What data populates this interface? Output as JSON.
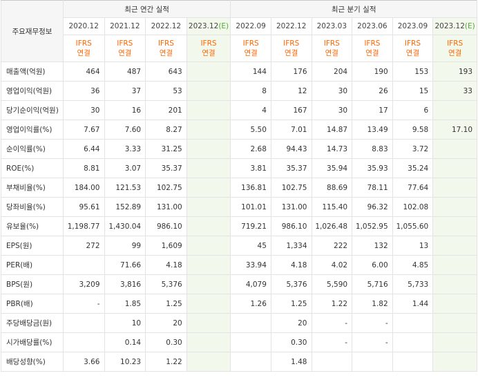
{
  "corner_label": "주요재무정보",
  "groups": {
    "annual": "최근 연간 실적",
    "quarterly": "최근 분기 실적"
  },
  "periods": [
    {
      "label": "2020.12",
      "est": false
    },
    {
      "label": "2021.12",
      "est": false
    },
    {
      "label": "2022.12",
      "est": false
    },
    {
      "label": "2023.12",
      "est": true,
      "est_mark": "(E)"
    },
    {
      "label": "2022.09",
      "est": false
    },
    {
      "label": "2022.12",
      "est": false
    },
    {
      "label": "2023.03",
      "est": false
    },
    {
      "label": "2023.06",
      "est": false
    },
    {
      "label": "2023.09",
      "est": false
    },
    {
      "label": "2023.12",
      "est": true,
      "est_mark": "(E)"
    }
  ],
  "standard": {
    "line1": "IFRS",
    "line2": "연결"
  },
  "rows": [
    {
      "label": "매출액(억원)",
      "values": [
        "464",
        "487",
        "643",
        "",
        "144",
        "176",
        "204",
        "190",
        "153",
        "193"
      ]
    },
    {
      "label": "영업이익(억원)",
      "values": [
        "36",
        "37",
        "53",
        "",
        "8",
        "12",
        "30",
        "26",
        "15",
        "33"
      ]
    },
    {
      "label": "당기순이익(억원)",
      "values": [
        "30",
        "16",
        "201",
        "",
        "4",
        "167",
        "30",
        "17",
        "6",
        ""
      ]
    },
    {
      "label": "영업이익률(%)",
      "values": [
        "7.67",
        "7.60",
        "8.27",
        "",
        "5.50",
        "7.01",
        "14.87",
        "13.49",
        "9.58",
        "17.10"
      ]
    },
    {
      "label": "순이익률(%)",
      "values": [
        "6.44",
        "3.33",
        "31.25",
        "",
        "2.68",
        "94.43",
        "14.73",
        "8.83",
        "3.72",
        ""
      ]
    },
    {
      "label": "ROE(%)",
      "values": [
        "8.81",
        "3.07",
        "35.37",
        "",
        "3.81",
        "35.37",
        "35.94",
        "35.93",
        "35.24",
        ""
      ]
    },
    {
      "label": "부채비율(%)",
      "values": [
        "184.00",
        "121.53",
        "102.75",
        "",
        "136.81",
        "102.75",
        "88.69",
        "78.11",
        "77.64",
        ""
      ]
    },
    {
      "label": "당좌비율(%)",
      "values": [
        "95.61",
        "152.89",
        "131.00",
        "",
        "101.01",
        "131.00",
        "115.40",
        "96.32",
        "102.08",
        ""
      ]
    },
    {
      "label": "유보율(%)",
      "values": [
        "1,198.77",
        "1,430.04",
        "986.10",
        "",
        "719.21",
        "986.10",
        "1,026.48",
        "1,052.95",
        "1,055.60",
        ""
      ]
    },
    {
      "label": "EPS(원)",
      "values": [
        "272",
        "99",
        "1,609",
        "",
        "45",
        "1,334",
        "222",
        "132",
        "13",
        ""
      ]
    },
    {
      "label": "PER(배)",
      "values": [
        "",
        "71.66",
        "4.18",
        "",
        "33.94",
        "4.18",
        "4.02",
        "6.00",
        "4.85",
        ""
      ]
    },
    {
      "label": "BPS(원)",
      "values": [
        "3,209",
        "3,816",
        "5,376",
        "",
        "4,079",
        "5,376",
        "5,590",
        "5,716",
        "5,733",
        ""
      ]
    },
    {
      "label": "PBR(배)",
      "values": [
        "-",
        "1.85",
        "1.25",
        "",
        "1.26",
        "1.25",
        "1.22",
        "1.82",
        "1.44",
        ""
      ]
    },
    {
      "label": "주당배당금(원)",
      "values": [
        "",
        "10",
        "20",
        "",
        "",
        "20",
        "-",
        "-",
        "",
        ""
      ]
    },
    {
      "label": "시가배당률(%)",
      "values": [
        "",
        "0.14",
        "0.30",
        "",
        "",
        "0.30",
        "-",
        "-",
        "",
        ""
      ]
    },
    {
      "label": "배당성향(%)",
      "values": [
        "3.66",
        "10.23",
        "1.22",
        "",
        "",
        "1.48",
        "",
        "",
        "",
        ""
      ]
    }
  ]
}
